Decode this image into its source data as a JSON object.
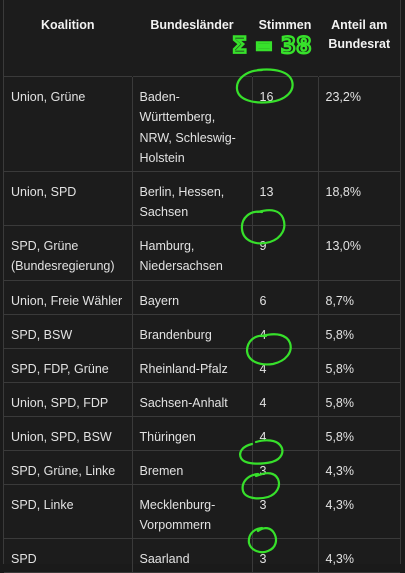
{
  "table": {
    "headers": [
      {
        "label": "Koalition"
      },
      {
        "label": "Bundesländer"
      },
      {
        "label": "Stimmen"
      },
      {
        "label": "Anteil am Bundesrat"
      }
    ],
    "rows": [
      {
        "koalition": "Union, Grüne",
        "laender": "Baden-Württemberg, NRW, Schleswig-Holstein",
        "stimmen": "16",
        "anteil": "23,2%"
      },
      {
        "koalition": "Union, SPD",
        "laender": "Berlin, Hessen, Sachsen",
        "stimmen": "13",
        "anteil": "18,8%"
      },
      {
        "koalition": "SPD, Grüne (Bundesregierung)",
        "laender": "Hamburg, Niedersachsen",
        "stimmen": "9",
        "anteil": "13,0%"
      },
      {
        "koalition": "Union, Freie Wähler",
        "laender": "Bayern",
        "stimmen": "6",
        "anteil": "8,7%"
      },
      {
        "koalition": "SPD, BSW",
        "laender": "Brandenburg",
        "stimmen": "4",
        "anteil": "5,8%"
      },
      {
        "koalition": "SPD, FDP, Grüne",
        "laender": "Rheinland-Pfalz",
        "stimmen": "4",
        "anteil": "5,8%"
      },
      {
        "koalition": "Union, SPD, FDP",
        "laender": "Sachsen-Anhalt",
        "stimmen": "4",
        "anteil": "5,8%"
      },
      {
        "koalition": "Union, SPD, BSW",
        "laender": "Thüringen",
        "stimmen": "4",
        "anteil": "5,8%"
      },
      {
        "koalition": "SPD, Grüne, Linke",
        "laender": "Bremen",
        "stimmen": "3",
        "anteil": "4,3%"
      },
      {
        "koalition": "SPD, Linke",
        "laender": "Mecklenburg-Vorpommern",
        "stimmen": "3",
        "anteil": "4,3%"
      },
      {
        "koalition": "SPD",
        "laender": "Saarland",
        "stimmen": "3",
        "anteil": "4,3%"
      }
    ]
  },
  "annotation": {
    "sum_text": "Σ = 38",
    "stroke_color": "#37e02b"
  }
}
